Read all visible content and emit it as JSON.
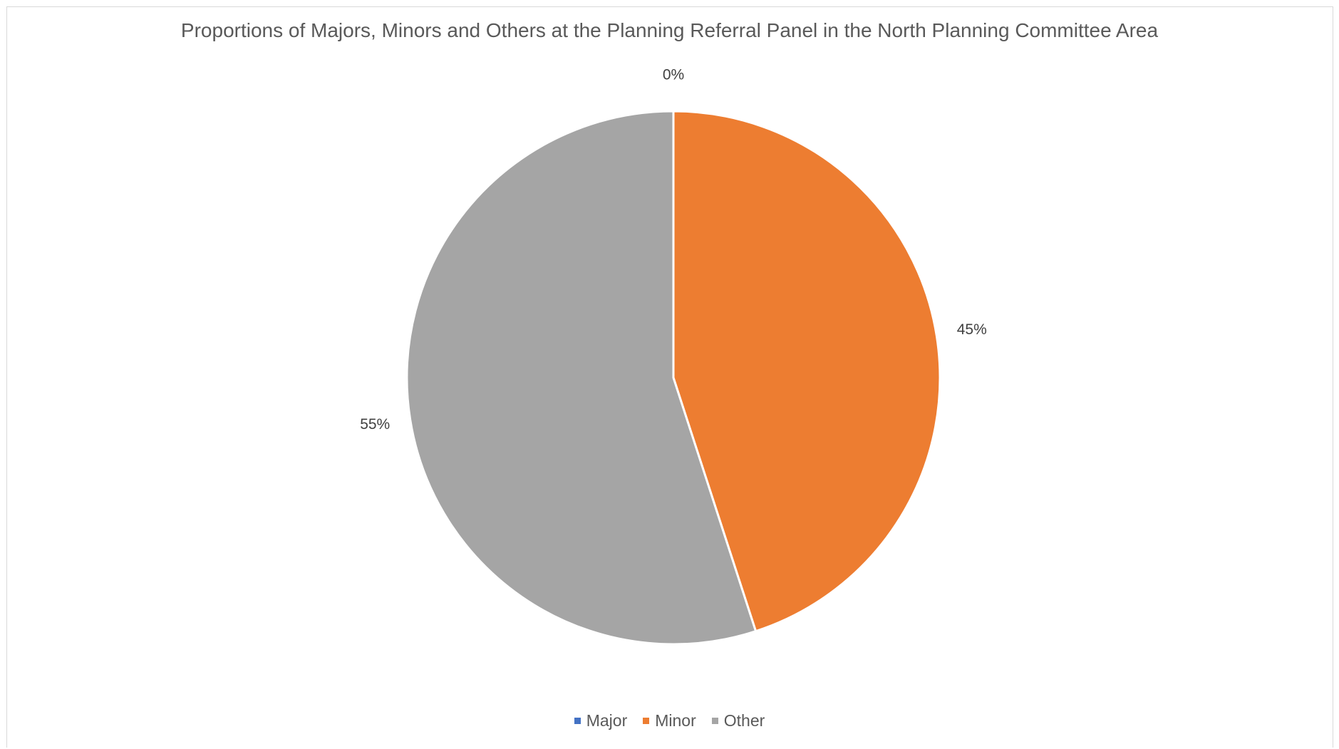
{
  "chart_data": {
    "type": "pie",
    "title": "Proportions of Majors, Minors and Others at the Planning Referral Panel in the North Planning Committee Area",
    "categories": [
      "Major",
      "Minor",
      "Other"
    ],
    "values": [
      0,
      45,
      55
    ],
    "data_labels": [
      "0%",
      "45%",
      "55%"
    ],
    "colors": [
      "#4472c4",
      "#ed7d31",
      "#a5a5a5"
    ],
    "legend_position": "bottom",
    "start_angle": "top, clockwise"
  },
  "legend": {
    "items": [
      {
        "label": "Major",
        "color": "#4472c4"
      },
      {
        "label": "Minor",
        "color": "#ed7d31"
      },
      {
        "label": "Other",
        "color": "#a5a5a5"
      }
    ]
  }
}
